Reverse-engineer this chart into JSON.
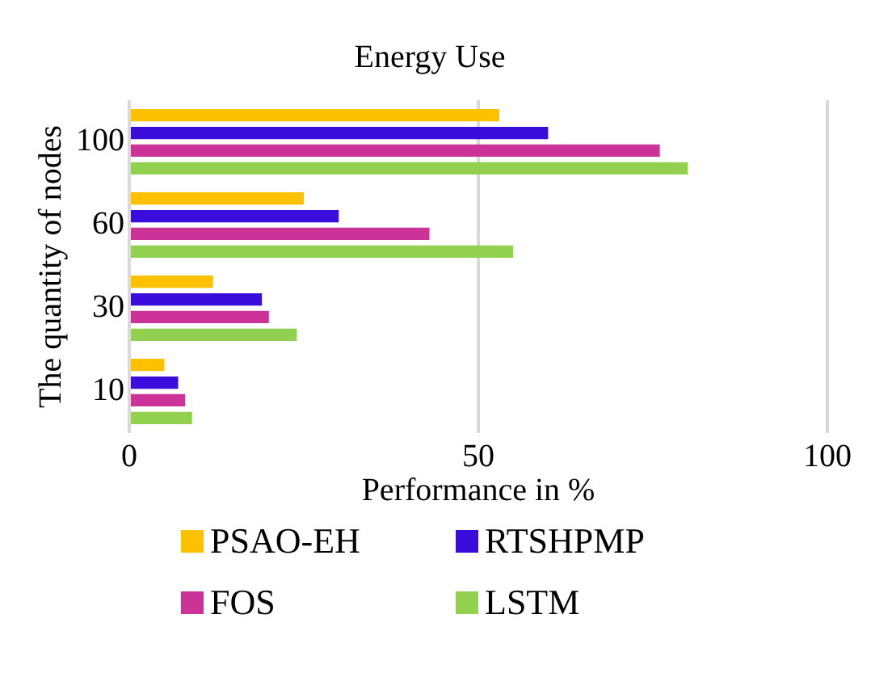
{
  "chart_data": {
    "type": "bar",
    "orientation": "horizontal",
    "title": "Energy Use",
    "xlabel": "Performance in %",
    "ylabel": "The quantity of nodes",
    "categories": [
      "100",
      "60",
      "30",
      "10"
    ],
    "series": [
      {
        "name": "PSAO-EH",
        "color": "#ffc000",
        "values": [
          53,
          25,
          12,
          5
        ]
      },
      {
        "name": "RTSHPMP",
        "color": "#3a0ddd",
        "values": [
          60,
          30,
          19,
          7
        ]
      },
      {
        "name": "FOS",
        "color": "#cc3399",
        "values": [
          76,
          43,
          20,
          8
        ]
      },
      {
        "name": "LSTM",
        "color": "#92d050",
        "values": [
          80,
          55,
          24,
          9
        ]
      }
    ],
    "xlim": [
      0,
      100
    ],
    "xticks": [
      0,
      50,
      100
    ],
    "grid": "x",
    "legend": "bottom"
  }
}
